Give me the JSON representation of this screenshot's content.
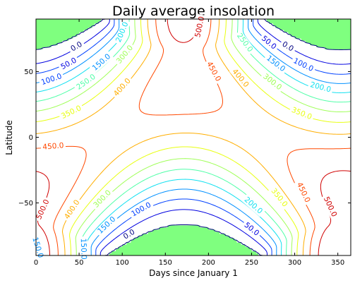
{
  "chart_data": {
    "type": "contour",
    "title": "Daily average insolation",
    "xlabel": "Days since January 1",
    "ylabel": "Latitude",
    "xlim": [
      0,
      365
    ],
    "ylim": [
      -90,
      90
    ],
    "xticks": [
      0,
      50,
      100,
      150,
      200,
      250,
      300,
      350
    ],
    "xtick_labels": [
      "0",
      "50",
      "100",
      "150",
      "200",
      "250",
      "300",
      "350"
    ],
    "yticks": [
      50,
      0,
      -50
    ],
    "ytick_labels": [
      "50",
      "0",
      "−50"
    ],
    "grid": false,
    "polar_night_fill": "#7fff7f",
    "levels": [
      {
        "value": 0,
        "label": "0.0",
        "color": "#000080"
      },
      {
        "value": 50,
        "label": "50.0",
        "color": "#0000e0"
      },
      {
        "value": 100,
        "label": "100.0",
        "color": "#0040ff"
      },
      {
        "value": 150,
        "label": "150.0",
        "color": "#0090ff"
      },
      {
        "value": 200,
        "label": "200.0",
        "color": "#10e0f0"
      },
      {
        "value": 250,
        "label": "250.0",
        "color": "#50ffa8"
      },
      {
        "value": 300,
        "label": "300.0",
        "color": "#a0ff58"
      },
      {
        "value": 350,
        "label": "350.0",
        "color": "#e8ff10"
      },
      {
        "value": 400,
        "label": "400.0",
        "color": "#ffae00"
      },
      {
        "value": 450,
        "label": "450.0",
        "color": "#ff4800"
      },
      {
        "value": 500,
        "label": "500.0",
        "color": "#d00000"
      }
    ],
    "contour_labels": [
      {
        "value": 0,
        "day": 47,
        "lat": 69
      },
      {
        "value": 0,
        "day": 292,
        "lat": 69
      },
      {
        "value": 0,
        "day": 108,
        "lat": -74
      },
      {
        "value": 50,
        "day": 38,
        "lat": 56
      },
      {
        "value": 50,
        "day": 270,
        "lat": 72
      },
      {
        "value": 50,
        "day": 250,
        "lat": -70
      },
      {
        "value": 100,
        "day": 18,
        "lat": 44
      },
      {
        "value": 100,
        "day": 310,
        "lat": 55
      },
      {
        "value": 100,
        "day": 122,
        "lat": -55
      },
      {
        "value": 150,
        "day": 76,
        "lat": 57
      },
      {
        "value": 150,
        "day": 278,
        "lat": 56
      },
      {
        "value": 150,
        "day": 82,
        "lat": -67
      },
      {
        "value": 200,
        "day": 100,
        "lat": 80
      },
      {
        "value": 200,
        "day": 330,
        "lat": 38
      },
      {
        "value": 200,
        "day": 252,
        "lat": -52
      },
      {
        "value": 250,
        "day": 58,
        "lat": 42
      },
      {
        "value": 250,
        "day": 242,
        "lat": 72
      },
      {
        "value": 300,
        "day": 103,
        "lat": 63
      },
      {
        "value": 300,
        "day": 274,
        "lat": 42
      },
      {
        "value": 300,
        "day": 77,
        "lat": -47
      },
      {
        "value": 350,
        "day": 41,
        "lat": 19
      },
      {
        "value": 350,
        "day": 308,
        "lat": 18
      },
      {
        "value": 350,
        "day": 282,
        "lat": -46
      },
      {
        "value": 400,
        "day": 100,
        "lat": 38
      },
      {
        "value": 400,
        "day": 237,
        "lat": 45
      },
      {
        "value": 400,
        "day": 42,
        "lat": -55
      },
      {
        "value": 450,
        "day": 206,
        "lat": 50
      },
      {
        "value": 450,
        "day": 20,
        "lat": -7
      },
      {
        "value": 450,
        "day": 310,
        "lat": -42
      },
      {
        "value": 500,
        "day": 8,
        "lat": -55
      },
      {
        "value": 500,
        "day": 341,
        "lat": -53
      },
      {
        "value": 500,
        "day": 190,
        "lat": 84
      },
      {
        "value": 150,
        "day": 2,
        "lat": -84
      },
      {
        "value": 150,
        "day": 55,
        "lat": -85
      }
    ]
  }
}
